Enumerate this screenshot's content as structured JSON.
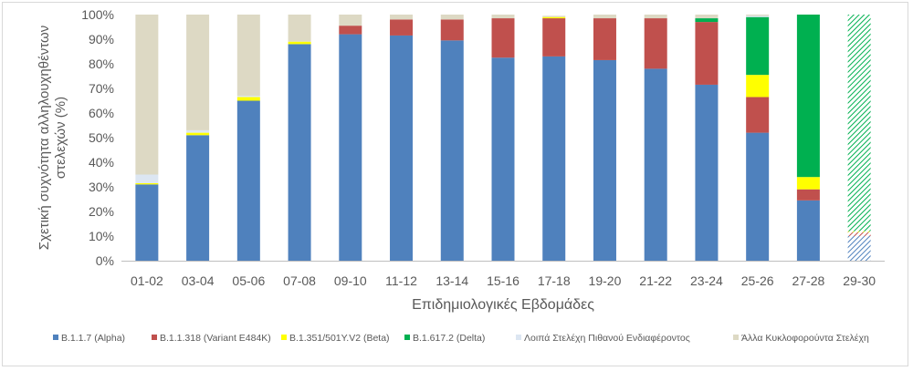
{
  "chart_data": {
    "type": "bar",
    "stacked": true,
    "percent": true,
    "xlabel": "Επιδημιολογικές Εβδομάδες",
    "ylabel": "Σχετική συχνότητα αλληλουχηθέντων στελεχών (%)",
    "ylim": [
      0,
      100
    ],
    "yticks": [
      "0%",
      "10%",
      "20%",
      "30%",
      "40%",
      "50%",
      "60%",
      "70%",
      "80%",
      "90%",
      "100%"
    ],
    "grid": false,
    "legend_position": "bottom",
    "categories": [
      "01-02",
      "03-04",
      "05-06",
      "07-08",
      "09-10",
      "11-12",
      "13-14",
      "15-16",
      "17-18",
      "19-20",
      "21-22",
      "23-24",
      "25-26",
      "27-28",
      "29-30"
    ],
    "hatched_categories": [
      "29-30"
    ],
    "series": [
      {
        "name": "B.1.1.7 (Alpha)",
        "color": "#4f81bd",
        "values": [
          31,
          51,
          65,
          88,
          92,
          91.5,
          89.5,
          82.5,
          83,
          81.5,
          78,
          71.5,
          52,
          24.5,
          10
        ]
      },
      {
        "name": "B.1.1.318 (Variant E484K)",
        "color": "#c0504d",
        "values": [
          0,
          0,
          0,
          0,
          3.5,
          6.5,
          8.5,
          16,
          15.5,
          17,
          20.5,
          25.5,
          14.5,
          4.5,
          1.5
        ]
      },
      {
        "name": "B.1.351/501Y.V2 (Beta)",
        "color": "#ffff00",
        "values": [
          0.5,
          1,
          1.5,
          1,
          0,
          0,
          0,
          0,
          0.5,
          0,
          0,
          0,
          9,
          5,
          0.5
        ]
      },
      {
        "name": "B.1.617.2 (Delta)",
        "color": "#00b050",
        "values": [
          0,
          0,
          0,
          0,
          0,
          0,
          0,
          0,
          0,
          0,
          0,
          1.5,
          23.5,
          66,
          88
        ]
      },
      {
        "name": "Λοιπά Στελέχη Πιθανού Ενδιαφέροντος",
        "color": "#dce6f2",
        "values": [
          3.5,
          1,
          0.5,
          0,
          0,
          0,
          0,
          0,
          0,
          0,
          0,
          0,
          0.5,
          0,
          0
        ]
      },
      {
        "name": "Άλλα Κυκλοφορούντα Στελέχη",
        "color": "#ddd9c4",
        "values": [
          65,
          47,
          33,
          11,
          4.5,
          2,
          2,
          1.5,
          0.5,
          1.5,
          1.5,
          1.5,
          0.5,
          0,
          0
        ]
      }
    ]
  }
}
